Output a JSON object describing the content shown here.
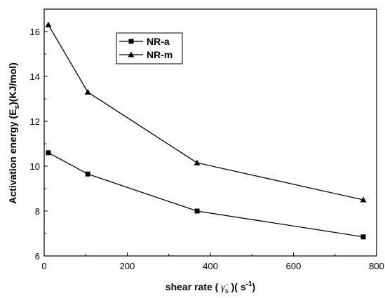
{
  "chart_data": {
    "type": "line",
    "xlabel": "shear rate",
    "xlabel_symbol": "γ̇",
    "xlabel_subscript": "s",
    "xlabel_unit": "s",
    "xlabel_unit_superscript": "-1",
    "ylabel": "Activation energy",
    "ylabel_symbol": "E",
    "ylabel_subscript": "s",
    "ylabel_unit": "(KJ/mol)",
    "xlim": [
      0,
      800
    ],
    "ylim": [
      6,
      17
    ],
    "xticks": [
      0,
      200,
      400,
      600,
      800
    ],
    "yticks": [
      6,
      8,
      10,
      12,
      14,
      16
    ],
    "x_tick_labels": [
      "0",
      "200",
      "400",
      "600",
      "800"
    ],
    "y_tick_labels": [
      "6",
      "8",
      "10",
      "12",
      "14",
      "16"
    ],
    "grid": false,
    "legend_position": "top-left",
    "series": [
      {
        "name": "NR-a",
        "marker": "square",
        "x": [
          10,
          105,
          368,
          768
        ],
        "y": [
          10.6,
          9.65,
          8.0,
          6.85
        ]
      },
      {
        "name": "NR-m",
        "marker": "triangle",
        "x": [
          10,
          105,
          368,
          768
        ],
        "y": [
          16.3,
          13.3,
          10.15,
          8.5
        ]
      }
    ]
  }
}
